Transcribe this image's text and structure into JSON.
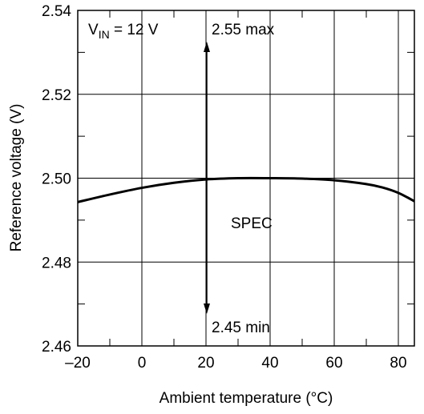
{
  "chart_data": {
    "type": "line",
    "xlabel": "Ambient temperature (°C)",
    "ylabel": "Reference voltage (V)",
    "xlim": [
      -20,
      85
    ],
    "ylim": [
      2.46,
      2.54
    ],
    "x_ticks": [
      -20,
      0,
      20,
      40,
      60,
      80
    ],
    "x_tick_labels": [
      "–20",
      "0",
      "20",
      "40",
      "60",
      "80"
    ],
    "y_ticks": [
      2.46,
      2.48,
      2.5,
      2.52,
      2.54
    ],
    "y_tick_labels": [
      "2.46",
      "2.48",
      "2.50",
      "2.52",
      "2.54"
    ],
    "grid": true,
    "series": [
      {
        "x": [
          -20,
          -10,
          0,
          10,
          20,
          30,
          40,
          50,
          60,
          70,
          75,
          80,
          85
        ],
        "y": [
          2.4943,
          2.4961,
          2.4977,
          2.4989,
          2.4997,
          2.5,
          2.5,
          2.4999,
          2.4995,
          2.4986,
          2.4978,
          2.4965,
          2.4945
        ]
      }
    ],
    "annotations": {
      "condition_main": "V",
      "condition_sub": "IN",
      "condition_rest": " = 12 V",
      "spec_label": "SPEC",
      "spec_max_label": "2.55 max",
      "spec_min_label": "2.45 min",
      "spec_arrow_x": 20
    }
  }
}
